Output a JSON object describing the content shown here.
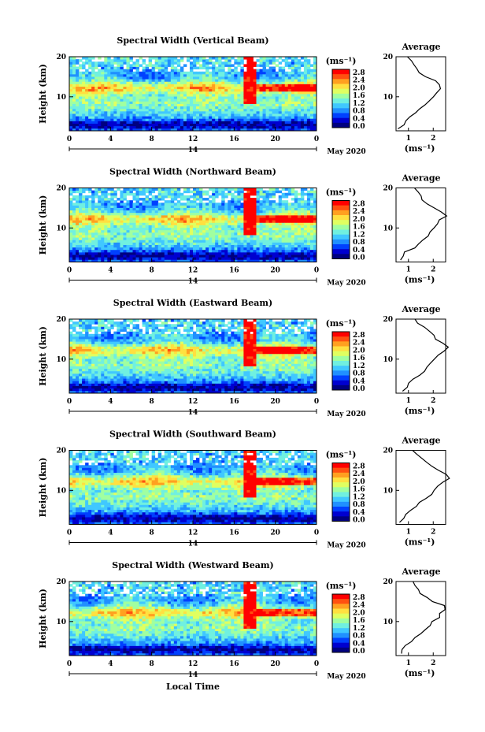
{
  "x_axis": {
    "ticks": [
      "0",
      "4",
      "8",
      "12",
      "16",
      "20",
      "0"
    ],
    "day_label": "14",
    "date_label": "May 2020",
    "label": "Local Time"
  },
  "y_axis": {
    "label": "Height (km)",
    "ticks": [
      "20",
      "10"
    ],
    "range_km": [
      1.5,
      20
    ]
  },
  "colorbar": {
    "unit": "(ms⁻¹)",
    "ticks": [
      "2.8",
      "2.4",
      "2.0",
      "1.6",
      "1.2",
      "0.8",
      "0.4",
      "0.0"
    ],
    "range": [
      0.0,
      2.9
    ],
    "colors": [
      "#000080",
      "#0000d0",
      "#0040ff",
      "#2090ff",
      "#40c8ff",
      "#70f0e0",
      "#a0ffa0",
      "#e0ff60",
      "#ffe040",
      "#ffa020",
      "#ff5010",
      "#ff0000"
    ]
  },
  "average_panel": {
    "title": "Average",
    "x_ticks": [
      "1",
      "2"
    ],
    "x_range": [
      0.5,
      2.5
    ],
    "x_unit": "(ms⁻¹)",
    "y_ticks": [
      "20",
      "10"
    ]
  },
  "chart_data": [
    {
      "type": "heatmap",
      "title": "Spectral Width (Vertical Beam)",
      "xlabel": "",
      "ylabel": "Height (km)",
      "xlim": [
        0,
        24
      ],
      "ylim": [
        1.5,
        20
      ],
      "avg_profile": {
        "height_km": [
          2,
          3,
          4,
          5,
          6,
          7,
          8,
          9,
          10,
          11,
          12,
          13,
          14,
          15,
          16,
          17,
          18,
          19,
          20
        ],
        "width_ms": [
          0.6,
          0.8,
          0.9,
          1.1,
          1.3,
          1.5,
          1.7,
          1.9,
          2.0,
          2.1,
          2.3,
          2.3,
          2.1,
          1.7,
          1.4,
          1.3,
          1.2,
          1.1,
          1.0
        ]
      }
    },
    {
      "type": "heatmap",
      "title": "Spectral Width (Northward Beam)",
      "xlabel": "",
      "ylabel": "Height (km)",
      "xlim": [
        0,
        24
      ],
      "ylim": [
        1.5,
        20
      ],
      "avg_profile": {
        "height_km": [
          2,
          3,
          4,
          5,
          6,
          7,
          8,
          9,
          10,
          11,
          12,
          13,
          14,
          15,
          16,
          17,
          18,
          19,
          20
        ],
        "width_ms": [
          0.7,
          0.8,
          0.9,
          1.2,
          1.4,
          1.6,
          1.8,
          1.9,
          2.0,
          2.2,
          2.3,
          2.5,
          2.3,
          2.0,
          1.8,
          1.6,
          1.5,
          1.4,
          1.3
        ]
      }
    },
    {
      "type": "heatmap",
      "title": "Spectral Width (Eastward Beam)",
      "xlabel": "",
      "ylabel": "Height (km)",
      "xlim": [
        0,
        24
      ],
      "ylim": [
        1.5,
        20
      ],
      "avg_profile": {
        "height_km": [
          2,
          3,
          4,
          5,
          6,
          7,
          8,
          9,
          10,
          11,
          12,
          13,
          14,
          15,
          16,
          17,
          18,
          19,
          20
        ],
        "width_ms": [
          0.8,
          0.9,
          1.0,
          1.2,
          1.4,
          1.6,
          1.8,
          1.9,
          2.0,
          2.2,
          2.4,
          2.6,
          2.4,
          2.1,
          2.0,
          1.9,
          1.6,
          1.4,
          1.3
        ]
      }
    },
    {
      "type": "heatmap",
      "title": "Spectral Width (Southward Beam)",
      "xlabel": "",
      "ylabel": "Height (km)",
      "xlim": [
        0,
        24
      ],
      "ylim": [
        1.5,
        20
      ],
      "avg_profile": {
        "height_km": [
          2,
          3,
          4,
          5,
          6,
          7,
          8,
          9,
          10,
          11,
          12,
          13,
          14,
          15,
          16,
          17,
          18,
          19,
          20
        ],
        "width_ms": [
          0.7,
          0.8,
          0.9,
          1.1,
          1.3,
          1.5,
          1.7,
          1.9,
          2.0,
          2.2,
          2.4,
          2.6,
          2.5,
          2.2,
          1.9,
          1.7,
          1.5,
          1.3,
          1.2
        ]
      }
    },
    {
      "type": "heatmap",
      "title": "Spectral Width (Westward Beam)",
      "xlabel": "Local Time",
      "ylabel": "Height (km)",
      "xlim": [
        0,
        24
      ],
      "ylim": [
        1.5,
        20
      ],
      "avg_profile": {
        "height_km": [
          2,
          3,
          4,
          5,
          6,
          7,
          8,
          9,
          10,
          11,
          12,
          13,
          14,
          15,
          16,
          17,
          18,
          19,
          20
        ],
        "width_ms": [
          0.7,
          0.8,
          0.9,
          1.1,
          1.3,
          1.5,
          1.7,
          1.9,
          2.0,
          2.2,
          2.3,
          2.5,
          2.4,
          2.0,
          1.7,
          1.5,
          1.4,
          1.3,
          1.2
        ]
      }
    }
  ]
}
